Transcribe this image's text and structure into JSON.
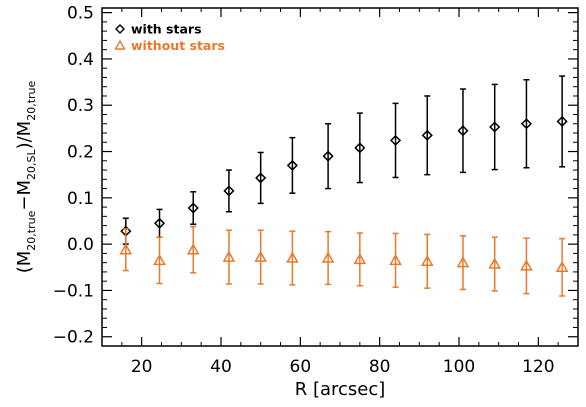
{
  "chart_data": {
    "type": "scatter",
    "title": "",
    "xlabel": "R [arcsec]",
    "ylabel": {
      "prefix": "(M",
      "sub1": "20,true",
      "mid": "−M",
      "sub2": "20,SL",
      "mid2": ")/M",
      "sub3": "20,true"
    },
    "xlim": [
      10,
      130
    ],
    "ylim": [
      -0.22,
      0.51
    ],
    "xticks": [
      20,
      40,
      60,
      80,
      100,
      120
    ],
    "xtick_labels": [
      "20",
      "40",
      "60",
      "80",
      "100",
      "120"
    ],
    "yticks": [
      -0.2,
      -0.1,
      0.0,
      0.1,
      0.2,
      0.3,
      0.4,
      0.5
    ],
    "ytick_labels": [
      "−0.2",
      "−0.1",
      "0.0",
      "0.1",
      "0.2",
      "0.3",
      "0.4",
      "0.5"
    ],
    "legend_position": "top-left",
    "series": [
      {
        "name": "with stars",
        "marker": "diamond",
        "color": "#000000",
        "x": [
          16,
          24.5,
          33,
          42,
          50,
          58,
          67,
          75,
          84,
          92,
          101,
          109,
          117,
          126
        ],
        "y": [
          0.028,
          0.045,
          0.078,
          0.115,
          0.143,
          0.17,
          0.19,
          0.208,
          0.224,
          0.235,
          0.245,
          0.253,
          0.26,
          0.265
        ],
        "err": [
          0.028,
          0.03,
          0.035,
          0.045,
          0.055,
          0.06,
          0.07,
          0.075,
          0.08,
          0.085,
          0.09,
          0.092,
          0.095,
          0.098
        ]
      },
      {
        "name": "without stars",
        "marker": "triangle",
        "color": "#e8792b",
        "x": [
          16,
          24.5,
          33,
          42,
          50,
          58,
          67,
          75,
          84,
          92,
          101,
          109,
          117,
          126
        ],
        "y": [
          -0.012,
          -0.035,
          -0.012,
          -0.028,
          -0.028,
          -0.03,
          -0.03,
          -0.033,
          -0.035,
          -0.037,
          -0.04,
          -0.043,
          -0.047,
          -0.05
        ],
        "err": [
          0.045,
          0.05,
          0.05,
          0.058,
          0.058,
          0.058,
          0.057,
          0.057,
          0.058,
          0.058,
          0.058,
          0.058,
          0.06,
          0.062
        ]
      }
    ]
  }
}
